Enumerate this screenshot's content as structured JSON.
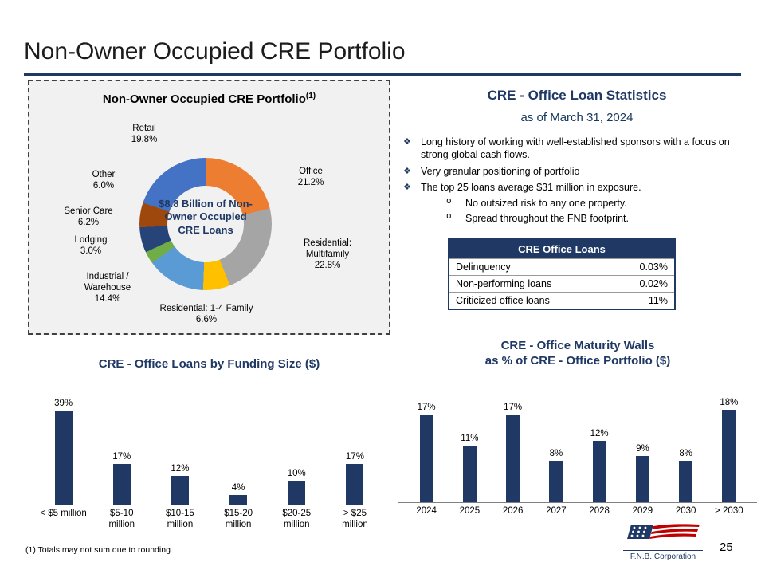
{
  "page": {
    "title": "Non-Owner Occupied CRE Portfolio",
    "footnote": "(1) Totals may not sum due to rounding.",
    "page_number": "25",
    "logo_text": "F.N.B. Corporation",
    "accent_color": "#1F3864"
  },
  "stats": {
    "title": "CRE - Office Loan Statistics",
    "subtitle": "as of March 31, 2024",
    "bullet_marker": "❖",
    "sub_bullet_marker": "o",
    "bullets": [
      {
        "text": "Long history of working with well-established sponsors with a focus on strong global cash flows."
      },
      {
        "text": "Very granular positioning of portfolio"
      },
      {
        "text": "The top 25 loans average $31 million in exposure."
      }
    ],
    "sub_bullets": [
      {
        "text": "No outsized risk to any one property."
      },
      {
        "text": "Spread throughout the FNB footprint."
      }
    ],
    "table": {
      "header": "CRE Office Loans",
      "rows": [
        {
          "label": "Delinquency",
          "value": "0.03%"
        },
        {
          "label": "Non-performing loans",
          "value": "0.02%"
        },
        {
          "label": "Criticized office loans",
          "value": "11%"
        }
      ]
    }
  },
  "chart_data": [
    {
      "type": "pie",
      "donut": true,
      "panel_title": "Non-Owner Occupied CRE Portfolio",
      "panel_title_sup": "(1)",
      "center_label": "$8.8 Billion of Non-Owner Occupied CRE Loans",
      "note": "segments listed clockwise starting at 12 o'clock",
      "segments": [
        {
          "name": "Office",
          "pct": "21.2%",
          "value": 21.2,
          "color": "#ED7D31"
        },
        {
          "name": "Residential: Multifamily",
          "pct": "22.8%",
          "value": 22.8,
          "color": "#A5A5A5"
        },
        {
          "name": "Residential: 1-4 Family",
          "pct": "6.6%",
          "value": 6.6,
          "color": "#FFC000"
        },
        {
          "name": "Industrial / Warehouse",
          "pct": "14.4%",
          "value": 14.4,
          "color": "#5B9BD5"
        },
        {
          "name": "Lodging",
          "pct": "3.0%",
          "value": 3.0,
          "color": "#70AD47"
        },
        {
          "name": "Senior Care",
          "pct": "6.2%",
          "value": 6.2,
          "color": "#264478"
        },
        {
          "name": "Other",
          "pct": "6.0%",
          "value": 6.0,
          "color": "#9E480E"
        },
        {
          "name": "Retail",
          "pct": "19.8%",
          "value": 19.8,
          "color": "#4472C4"
        }
      ]
    },
    {
      "type": "bar",
      "title": "CRE - Office Loans by Funding Size ($)",
      "categories": [
        "< $5 million",
        "$5-10 million",
        "$10-15 million",
        "$15-20 million",
        "$20-25 million",
        "> $25 million"
      ],
      "tick_labels": [
        "< $5 million",
        "$5-10\nmillion",
        "$10-15\nmillion",
        "$15-20\nmillion",
        "$20-25\nmillion",
        "> $25\nmillion"
      ],
      "values": [
        39,
        17,
        12,
        4,
        10,
        17
      ],
      "value_labels": [
        "39%",
        "17%",
        "12%",
        "4%",
        "10%",
        "17%"
      ],
      "bar_color": "#1F3864",
      "ylim": [
        0,
        40
      ],
      "grid": false,
      "legend": false
    },
    {
      "type": "bar",
      "title": "CRE - Office Maturity Walls as % of CRE - Office Portfolio ($)",
      "title_lines": [
        "CRE - Office Maturity Walls",
        "as % of CRE - Office Portfolio ($)"
      ],
      "categories": [
        "2024",
        "2025",
        "2026",
        "2027",
        "2028",
        "2029",
        "2030",
        "> 2030"
      ],
      "tick_labels": [
        "2024",
        "2025",
        "2026",
        "2027",
        "2028",
        "2029",
        "2030",
        "> 2030"
      ],
      "values": [
        17,
        11,
        17,
        8,
        12,
        9,
        8,
        18
      ],
      "value_labels": [
        "17%",
        "11%",
        "17%",
        "8%",
        "12%",
        "9%",
        "8%",
        "18%"
      ],
      "bar_color": "#1F3864",
      "ylim": [
        0,
        20
      ],
      "grid": false,
      "legend": false
    }
  ]
}
